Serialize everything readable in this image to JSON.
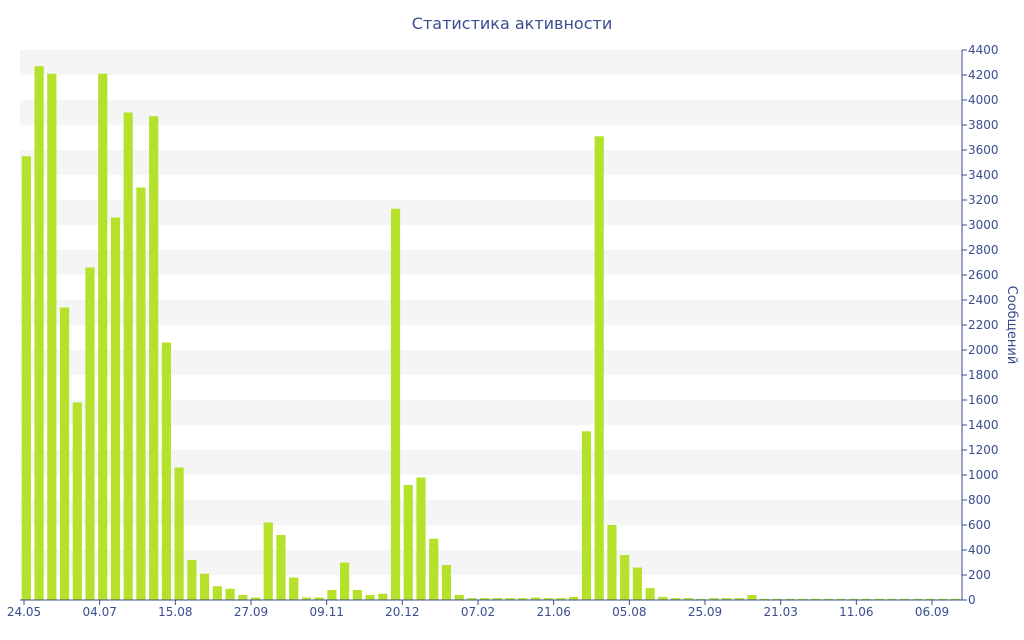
{
  "colors": {
    "bar": "#b5e12a",
    "band": "#f5f5f5",
    "axis": "#3a4d8f",
    "background": "#ffffff"
  },
  "chart_data": {
    "type": "bar",
    "title": "Статистика активности",
    "xlabel": "",
    "ylabel": "Сообщений",
    "y_axis_side": "right",
    "ylim": [
      0,
      4400
    ],
    "ytick_step": 200,
    "grid": "alternating horizontal bands",
    "x_tick_labels": [
      "24.05",
      "04.07",
      "15.08",
      "27.09",
      "09.11",
      "20.12",
      "07.02",
      "21.06",
      "05.08",
      "25.09",
      "21.03",
      "11.06",
      "06.09"
    ],
    "values": [
      3550,
      4270,
      4210,
      2340,
      1580,
      2660,
      4210,
      3060,
      3900,
      3300,
      3870,
      2060,
      1060,
      320,
      210,
      110,
      90,
      40,
      20,
      620,
      520,
      180,
      20,
      20,
      80,
      300,
      80,
      40,
      50,
      3130,
      920,
      980,
      490,
      280,
      40,
      15,
      15,
      15,
      15,
      15,
      20,
      15,
      15,
      25,
      1350,
      3710,
      600,
      360,
      260,
      95,
      25,
      15,
      15,
      10,
      15,
      15,
      15,
      40,
      10,
      10,
      10,
      10,
      10,
      10,
      10,
      10,
      10,
      10,
      10,
      10,
      10,
      10,
      10,
      10
    ]
  }
}
